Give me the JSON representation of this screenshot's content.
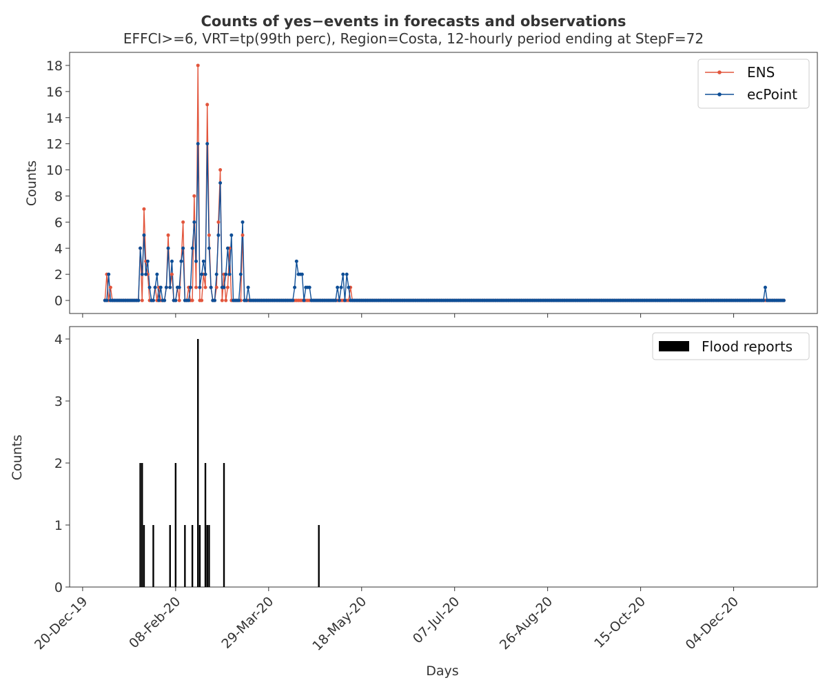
{
  "title": "Counts of yes−events in forecasts and observations",
  "subtitle": "EFFCI>=6, VRT=tp(99th perc), Region=Costa, 12-hourly period ending at StepF=72",
  "chart_data": [
    {
      "type": "line",
      "ylabel": "Counts",
      "ylim": [
        -1,
        19
      ],
      "yticks": [
        0,
        2,
        4,
        6,
        8,
        10,
        12,
        14,
        16,
        18
      ],
      "x_start": "2020-01-01",
      "x_end": "2020-12-31",
      "legend_position": "top-right",
      "series": [
        {
          "name": "ENS",
          "color": "#e2553c",
          "points": [
            [
              "2020-01-02",
              2
            ],
            [
              "2020-01-03",
              0
            ],
            [
              "2020-01-04",
              1
            ],
            [
              "2020-01-05",
              0
            ],
            [
              "2020-01-20",
              4
            ],
            [
              "2020-01-21",
              0
            ],
            [
              "2020-01-22",
              7
            ],
            [
              "2020-01-23",
              3
            ],
            [
              "2020-01-24",
              2
            ],
            [
              "2020-01-25",
              0
            ],
            [
              "2020-01-28",
              1
            ],
            [
              "2020-01-29",
              0
            ],
            [
              "2020-01-30",
              1
            ],
            [
              "2020-02-03",
              1
            ],
            [
              "2020-02-04",
              5
            ],
            [
              "2020-02-05",
              1
            ],
            [
              "2020-02-06",
              2
            ],
            [
              "2020-02-07",
              0
            ],
            [
              "2020-02-08",
              0
            ],
            [
              "2020-02-09",
              1
            ],
            [
              "2020-02-10",
              0
            ],
            [
              "2020-02-11",
              3
            ],
            [
              "2020-02-12",
              6
            ],
            [
              "2020-02-13",
              0
            ],
            [
              "2020-02-14",
              0
            ],
            [
              "2020-02-15",
              1
            ],
            [
              "2020-02-16",
              0
            ],
            [
              "2020-02-17",
              0
            ],
            [
              "2020-02-18",
              8
            ],
            [
              "2020-02-19",
              1
            ],
            [
              "2020-02-20",
              18
            ],
            [
              "2020-02-21",
              0
            ],
            [
              "2020-02-22",
              0
            ],
            [
              "2020-02-23",
              2
            ],
            [
              "2020-02-24",
              1
            ],
            [
              "2020-02-25",
              15
            ],
            [
              "2020-02-26",
              5
            ],
            [
              "2020-02-27",
              1
            ],
            [
              "2020-02-28",
              0
            ],
            [
              "2020-02-29",
              0
            ],
            [
              "2020-03-01",
              1
            ],
            [
              "2020-03-02",
              6
            ],
            [
              "2020-03-03",
              10
            ],
            [
              "2020-03-04",
              0
            ],
            [
              "2020-03-05",
              2
            ],
            [
              "2020-03-06",
              0
            ],
            [
              "2020-03-07",
              1
            ],
            [
              "2020-03-08",
              4
            ],
            [
              "2020-03-09",
              0
            ],
            [
              "2020-03-14",
              0
            ],
            [
              "2020-03-15",
              5
            ],
            [
              "2020-04-13",
              0
            ],
            [
              "2020-04-16",
              0
            ],
            [
              "2020-04-19",
              0
            ],
            [
              "2020-04-20",
              0
            ],
            [
              "2020-05-08",
              0
            ],
            [
              "2020-05-12",
              1
            ]
          ]
        },
        {
          "name": "ecPoint",
          "color": "#0e4e96",
          "points": [
            [
              "2020-01-01",
              0
            ],
            [
              "2020-01-02",
              0
            ],
            [
              "2020-01-03",
              2
            ],
            [
              "2020-01-04",
              0
            ],
            [
              "2020-01-20",
              4
            ],
            [
              "2020-01-21",
              2
            ],
            [
              "2020-01-22",
              5
            ],
            [
              "2020-01-23",
              2
            ],
            [
              "2020-01-24",
              3
            ],
            [
              "2020-01-25",
              1
            ],
            [
              "2020-01-26",
              0
            ],
            [
              "2020-01-27",
              0
            ],
            [
              "2020-01-28",
              1
            ],
            [
              "2020-01-29",
              2
            ],
            [
              "2020-01-30",
              0
            ],
            [
              "2020-01-31",
              1
            ],
            [
              "2020-02-01",
              0
            ],
            [
              "2020-02-02",
              0
            ],
            [
              "2020-02-03",
              1
            ],
            [
              "2020-02-04",
              4
            ],
            [
              "2020-02-05",
              1
            ],
            [
              "2020-02-06",
              3
            ],
            [
              "2020-02-07",
              0
            ],
            [
              "2020-02-08",
              0
            ],
            [
              "2020-02-09",
              1
            ],
            [
              "2020-02-10",
              1
            ],
            [
              "2020-02-11",
              3
            ],
            [
              "2020-02-12",
              4
            ],
            [
              "2020-02-13",
              0
            ],
            [
              "2020-02-14",
              0
            ],
            [
              "2020-02-15",
              0
            ],
            [
              "2020-02-16",
              1
            ],
            [
              "2020-02-17",
              4
            ],
            [
              "2020-02-18",
              6
            ],
            [
              "2020-02-19",
              3
            ],
            [
              "2020-02-20",
              12
            ],
            [
              "2020-02-21",
              1
            ],
            [
              "2020-02-22",
              2
            ],
            [
              "2020-02-23",
              3
            ],
            [
              "2020-02-24",
              2
            ],
            [
              "2020-02-25",
              12
            ],
            [
              "2020-02-26",
              4
            ],
            [
              "2020-02-27",
              1
            ],
            [
              "2020-02-28",
              0
            ],
            [
              "2020-02-29",
              0
            ],
            [
              "2020-03-01",
              2
            ],
            [
              "2020-03-02",
              5
            ],
            [
              "2020-03-03",
              9
            ],
            [
              "2020-03-04",
              1
            ],
            [
              "2020-03-05",
              1
            ],
            [
              "2020-03-06",
              2
            ],
            [
              "2020-03-07",
              4
            ],
            [
              "2020-03-08",
              2
            ],
            [
              "2020-03-09",
              5
            ],
            [
              "2020-03-10",
              0
            ],
            [
              "2020-03-14",
              2
            ],
            [
              "2020-03-15",
              6
            ],
            [
              "2020-03-16",
              0
            ],
            [
              "2020-03-18",
              1
            ],
            [
              "2020-03-19",
              0
            ],
            [
              "2020-04-12",
              1
            ],
            [
              "2020-04-13",
              3
            ],
            [
              "2020-04-14",
              2
            ],
            [
              "2020-04-15",
              2
            ],
            [
              "2020-04-16",
              2
            ],
            [
              "2020-04-17",
              0
            ],
            [
              "2020-04-18",
              1
            ],
            [
              "2020-04-19",
              1
            ],
            [
              "2020-04-20",
              1
            ],
            [
              "2020-04-21",
              0
            ],
            [
              "2020-05-05",
              1
            ],
            [
              "2020-05-06",
              0
            ],
            [
              "2020-05-07",
              1
            ],
            [
              "2020-05-08",
              2
            ],
            [
              "2020-05-09",
              0
            ],
            [
              "2020-05-10",
              2
            ],
            [
              "2020-05-11",
              1
            ],
            [
              "2020-05-12",
              0
            ],
            [
              "2020-12-20",
              0
            ],
            [
              "2020-12-21",
              1
            ],
            [
              "2020-12-22",
              0
            ],
            [
              "2020-12-31",
              0
            ]
          ]
        }
      ]
    },
    {
      "type": "bar",
      "ylabel": "Counts",
      "xlabel": "Days",
      "ylim": [
        0,
        4.2
      ],
      "yticks": [
        0,
        1,
        2,
        3,
        4
      ],
      "legend_position": "top-right",
      "series": [
        {
          "name": "Flood reports",
          "color": "#000000",
          "points": [
            [
              "2020-01-20",
              2
            ],
            [
              "2020-01-21",
              2
            ],
            [
              "2020-01-22",
              1
            ],
            [
              "2020-01-27",
              1
            ],
            [
              "2020-02-05",
              1
            ],
            [
              "2020-02-08",
              2
            ],
            [
              "2020-02-13",
              1
            ],
            [
              "2020-02-17",
              1
            ],
            [
              "2020-02-20",
              4
            ],
            [
              "2020-02-21",
              1
            ],
            [
              "2020-02-24",
              2
            ],
            [
              "2020-02-25",
              1
            ],
            [
              "2020-02-26",
              1
            ],
            [
              "2020-03-05",
              2
            ],
            [
              "2020-04-25",
              1
            ]
          ]
        }
      ]
    }
  ],
  "xaxis": {
    "ticks": [
      {
        "date": "2019-12-20",
        "label": "20-Dec-19"
      },
      {
        "date": "2020-02-08",
        "label": "08-Feb-20"
      },
      {
        "date": "2020-03-29",
        "label": "29-Mar-20"
      },
      {
        "date": "2020-05-18",
        "label": "18-May-20"
      },
      {
        "date": "2020-07-07",
        "label": "07-Jul-20"
      },
      {
        "date": "2020-08-26",
        "label": "26-Aug-20"
      },
      {
        "date": "2020-10-15",
        "label": "15-Oct-20"
      },
      {
        "date": "2020-12-04",
        "label": "04-Dec-20"
      }
    ],
    "range": [
      "2019-12-13",
      "2021-01-18"
    ]
  }
}
